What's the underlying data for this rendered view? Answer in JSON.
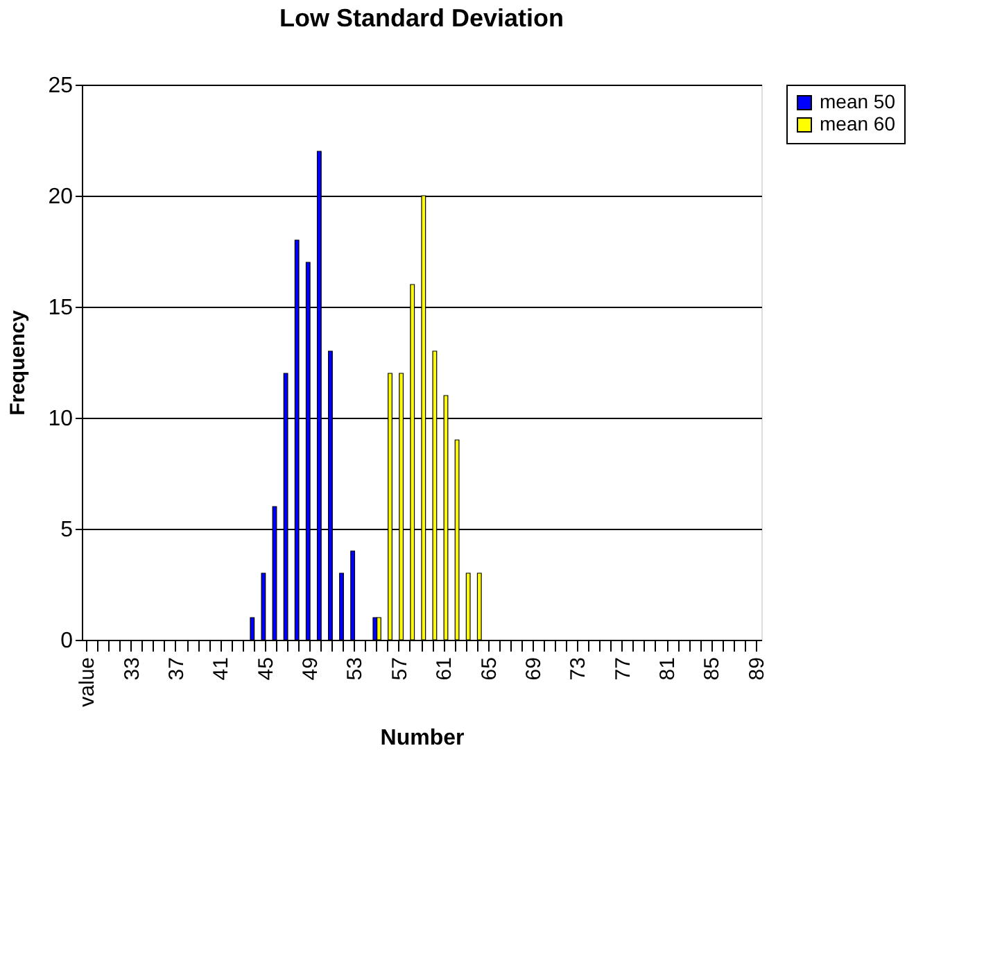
{
  "chart_data": {
    "type": "bar",
    "title": "Low Standard Deviation",
    "xlabel": "Number",
    "ylabel": "Frequency",
    "categories": [
      "value",
      null,
      null,
      null,
      "33",
      null,
      null,
      null,
      "37",
      null,
      null,
      null,
      "41",
      null,
      null,
      null,
      "45",
      null,
      null,
      null,
      "49",
      null,
      null,
      null,
      "53",
      null,
      null,
      null,
      "57",
      null,
      null,
      null,
      "61",
      null,
      null,
      null,
      "65",
      null,
      null,
      null,
      "69",
      null,
      null,
      null,
      "73",
      null,
      null,
      null,
      "77",
      null,
      null,
      null,
      "81",
      null,
      null,
      null,
      "85",
      null,
      null,
      null,
      "89"
    ],
    "series": [
      {
        "name": "mean 50",
        "color": "#0000ff",
        "values": [
          null,
          null,
          null,
          null,
          null,
          null,
          null,
          null,
          null,
          null,
          null,
          null,
          null,
          null,
          null,
          1,
          3,
          6,
          12,
          18,
          17,
          22,
          13,
          3,
          4,
          null,
          1,
          null,
          null,
          null,
          null,
          null,
          null,
          null,
          null,
          null,
          null,
          null,
          null,
          null,
          null,
          null,
          null,
          null,
          null,
          null,
          null,
          null,
          null,
          null,
          null,
          null,
          null,
          null,
          null,
          null,
          null,
          null,
          null,
          null,
          null
        ]
      },
      {
        "name": "mean 60",
        "color": "#ffff00",
        "values": [
          null,
          null,
          null,
          null,
          null,
          null,
          null,
          null,
          null,
          null,
          null,
          null,
          null,
          null,
          null,
          null,
          null,
          null,
          null,
          null,
          null,
          null,
          null,
          null,
          null,
          null,
          1,
          12,
          12,
          16,
          20,
          13,
          11,
          9,
          3,
          3,
          null,
          null,
          null,
          null,
          null,
          null,
          null,
          null,
          null,
          null,
          null,
          null,
          null,
          null,
          null,
          null,
          null,
          null,
          null,
          null,
          null,
          null,
          null,
          null,
          null
        ]
      }
    ],
    "ylim": [
      0,
      25
    ],
    "yticks": [
      0,
      5,
      10,
      15,
      20,
      25
    ],
    "grid": "y",
    "legend": "right"
  }
}
